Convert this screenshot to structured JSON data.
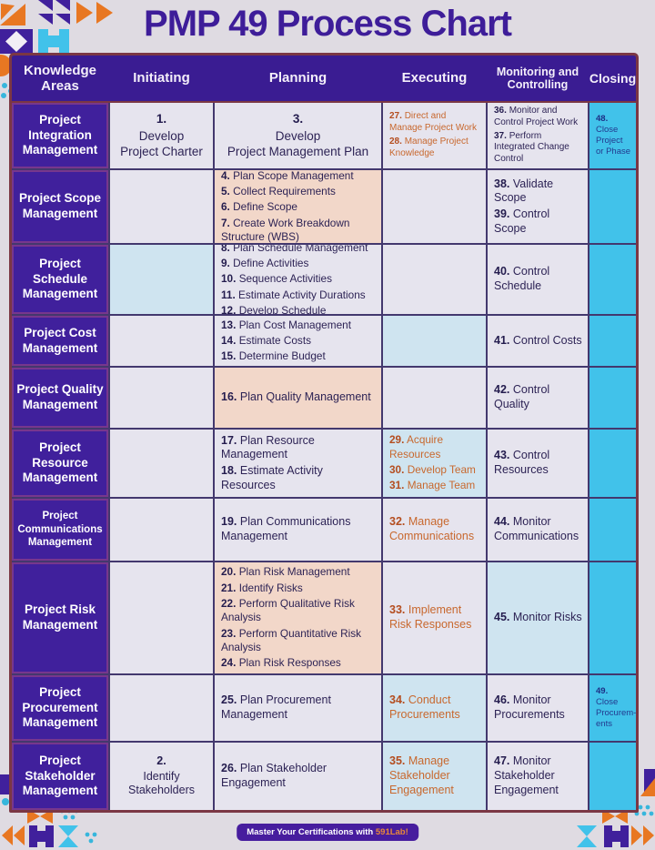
{
  "title": "PMP 49 Process Chart",
  "palette": {
    "deep_purple": "#3e1d99",
    "header_purple": "#3a1c92",
    "area_purple": "#40209c",
    "cyan": "#41c2ea",
    "pink_cell": "#f2d7c9",
    "blue_cell": "#cfe4f0",
    "lavender_cell": "#e6e4ee",
    "orange_text": "#c8682e",
    "dark_text": "#2d2355",
    "closing_text": "#233a8f",
    "background": "#dfdbe2",
    "mosaic_orange": "#e87722",
    "mosaic_teal": "#37b6dc"
  },
  "table": {
    "headers": [
      "Knowledge Areas",
      "Initiating",
      "Planning",
      "Executing",
      "Monitoring and Controlling",
      "Closing"
    ],
    "rows": [
      {
        "area": "Project Integration Management",
        "cells": {
          "initiating": {
            "bg": "lav",
            "size": "lg",
            "center": true,
            "items": [
              {
                "n": "1.",
                "t": "Develop\nProject Charter"
              }
            ]
          },
          "planning": {
            "bg": "lav",
            "size": "lg",
            "center": true,
            "items": [
              {
                "n": "3.",
                "t": "Develop\nProject Management Plan"
              }
            ]
          },
          "executing": {
            "bg": "lav",
            "tone": "orange",
            "size": "xs",
            "items": [
              {
                "n": "27.",
                "t": "Direct and Manage Project Work"
              },
              {
                "n": "28.",
                "t": "Manage Project Knowledge"
              }
            ]
          },
          "monitoring": {
            "bg": "lav",
            "size": "xs",
            "items": [
              {
                "n": "36.",
                "t": "Monitor and Control Project Work"
              },
              {
                "n": "37.",
                "t": "Perform Integrated Change Control"
              }
            ]
          },
          "closing": {
            "bg": "cyan",
            "tone": "cyan",
            "size": "xxs",
            "items": [
              {
                "n": "48.",
                "t": "Close Project or Phase"
              }
            ]
          }
        }
      },
      {
        "area": "Project Scope Management",
        "cells": {
          "initiating": {
            "bg": "lav",
            "items": []
          },
          "planning": {
            "bg": "pink",
            "size": "sm",
            "items": [
              {
                "n": "4.",
                "t": "Plan Scope Management"
              },
              {
                "n": "5.",
                "t": "Collect Requirements"
              },
              {
                "n": "6.",
                "t": "Define Scope"
              },
              {
                "n": "7.",
                "t": "Create Work Breakdown Structure (WBS)"
              }
            ]
          },
          "executing": {
            "bg": "lav",
            "items": []
          },
          "monitoring": {
            "bg": "lav",
            "size": "md",
            "items": [
              {
                "n": "38.",
                "t": "Validate Scope"
              },
              {
                "n": "39.",
                "t": "Control Scope"
              }
            ]
          },
          "closing": {
            "bg": "cyan",
            "items": []
          }
        }
      },
      {
        "area": "Project Schedule Management",
        "cells": {
          "initiating": {
            "bg": "blue",
            "items": []
          },
          "planning": {
            "bg": "lav",
            "size": "sm",
            "items": [
              {
                "n": "8.",
                "t": "Plan Schedule Management"
              },
              {
                "n": "9.",
                "t": "Define Activities"
              },
              {
                "n": "10.",
                "t": "Sequence Activities"
              },
              {
                "n": "11.",
                "t": "Estimate Activity Durations"
              },
              {
                "n": "12.",
                "t": "Develop Schedule"
              }
            ]
          },
          "executing": {
            "bg": "lav",
            "items": []
          },
          "monitoring": {
            "bg": "lav",
            "size": "md",
            "items": [
              {
                "n": "40.",
                "t": "Control Schedule"
              }
            ]
          },
          "closing": {
            "bg": "cyan",
            "items": []
          }
        }
      },
      {
        "area": "Project Cost Management",
        "cells": {
          "initiating": {
            "bg": "lav",
            "items": []
          },
          "planning": {
            "bg": "lav",
            "size": "sm",
            "items": [
              {
                "n": "13.",
                "t": "Plan Cost Management"
              },
              {
                "n": "14.",
                "t": "Estimate Costs"
              },
              {
                "n": "15.",
                "t": "Determine Budget"
              }
            ]
          },
          "executing": {
            "bg": "blue",
            "items": []
          },
          "monitoring": {
            "bg": "lav",
            "size": "md",
            "items": [
              {
                "n": "41.",
                "t": "Control Costs"
              }
            ]
          },
          "closing": {
            "bg": "cyan",
            "items": []
          }
        }
      },
      {
        "area": "Project Quality Management",
        "cells": {
          "initiating": {
            "bg": "lav",
            "items": []
          },
          "planning": {
            "bg": "pink",
            "size": "md",
            "items": [
              {
                "n": "16.",
                "t": "Plan Quality Management"
              }
            ]
          },
          "executing": {
            "bg": "lav",
            "items": []
          },
          "monitoring": {
            "bg": "lav",
            "size": "md",
            "items": [
              {
                "n": "42.",
                "t": "Control Quality"
              }
            ]
          },
          "closing": {
            "bg": "cyan",
            "items": []
          }
        }
      },
      {
        "area": "Project Resource Management",
        "cells": {
          "initiating": {
            "bg": "lav",
            "items": []
          },
          "planning": {
            "bg": "lav",
            "size": "md",
            "items": [
              {
                "n": "17.",
                "t": "Plan Resource Management"
              },
              {
                "n": "18.",
                "t": "Estimate Activity Resources"
              }
            ]
          },
          "executing": {
            "bg": "blue",
            "tone": "orange",
            "size": "sm",
            "items": [
              {
                "n": "29.",
                "t": "Acquire Resources"
              },
              {
                "n": "30.",
                "t": "Develop Team"
              },
              {
                "n": "31.",
                "t": "Manage Team"
              }
            ]
          },
          "monitoring": {
            "bg": "lav",
            "size": "md",
            "items": [
              {
                "n": "43.",
                "t": "Control Resources"
              }
            ]
          },
          "closing": {
            "bg": "cyan",
            "items": []
          }
        }
      },
      {
        "area": "Project Communications Management",
        "small": true,
        "cells": {
          "initiating": {
            "bg": "lav",
            "items": []
          },
          "planning": {
            "bg": "lav",
            "size": "md",
            "items": [
              {
                "n": "19.",
                "t": "Plan Communications Management"
              }
            ]
          },
          "executing": {
            "bg": "lav",
            "tone": "orange",
            "size": "md",
            "items": [
              {
                "n": "32.",
                "t": "Manage Communications"
              }
            ]
          },
          "monitoring": {
            "bg": "lav",
            "size": "md",
            "items": [
              {
                "n": "44.",
                "t": "Monitor Communications"
              }
            ]
          },
          "closing": {
            "bg": "cyan",
            "items": []
          }
        }
      },
      {
        "area": "Project Risk Management",
        "cells": {
          "initiating": {
            "bg": "lav",
            "items": []
          },
          "planning": {
            "bg": "pink",
            "size": "sm",
            "items": [
              {
                "n": "20.",
                "t": "Plan Risk Management"
              },
              {
                "n": "21.",
                "t": "Identify Risks"
              },
              {
                "n": "22.",
                "t": "Perform Qualitative Risk Analysis"
              },
              {
                "n": "23.",
                "t": "Perform Quantitative Risk Analysis"
              },
              {
                "n": "24.",
                "t": "Plan Risk Responses"
              }
            ]
          },
          "executing": {
            "bg": "lav",
            "tone": "orange",
            "size": "md",
            "items": [
              {
                "n": "33.",
                "t": "Implement Risk Responses"
              }
            ]
          },
          "monitoring": {
            "bg": "blue",
            "size": "md",
            "items": [
              {
                "n": "45.",
                "t": "Monitor Risks"
              }
            ]
          },
          "closing": {
            "bg": "cyan",
            "items": []
          }
        }
      },
      {
        "area": "Project Procurement Management",
        "cells": {
          "initiating": {
            "bg": "lav",
            "items": []
          },
          "planning": {
            "bg": "lav",
            "size": "md",
            "items": [
              {
                "n": "25.",
                "t": "Plan Procurement Management"
              }
            ]
          },
          "executing": {
            "bg": "blue",
            "tone": "orange",
            "size": "md",
            "items": [
              {
                "n": "34.",
                "t": "Conduct Procurements"
              }
            ]
          },
          "monitoring": {
            "bg": "lav",
            "size": "md",
            "items": [
              {
                "n": "46.",
                "t": "Monitor Procurements"
              }
            ]
          },
          "closing": {
            "bg": "cyan",
            "tone": "cyan",
            "size": "xxs",
            "items": [
              {
                "n": "49.",
                "t": "Close Procurem-ents"
              }
            ]
          }
        }
      },
      {
        "area": "Project Stakeholder Management",
        "cells": {
          "initiating": {
            "bg": "lav",
            "size": "md",
            "center": true,
            "items": [
              {
                "n": "2.",
                "t": "Identify\nStakeholders"
              }
            ]
          },
          "planning": {
            "bg": "lav",
            "size": "md",
            "items": [
              {
                "n": "26.",
                "t": "Plan Stakeholder Engagement"
              }
            ]
          },
          "executing": {
            "bg": "blue",
            "tone": "orange",
            "size": "md",
            "items": [
              {
                "n": "35.",
                "t": "Manage Stakeholder Engagement"
              }
            ]
          },
          "monitoring": {
            "bg": "lav",
            "size": "md",
            "items": [
              {
                "n": "47.",
                "t": "Monitor Stakeholder Engagement"
              }
            ]
          },
          "closing": {
            "bg": "cyan",
            "items": []
          }
        }
      }
    ]
  },
  "footer": {
    "text": "Master Your Certifications with",
    "brand": "591Lab!"
  }
}
